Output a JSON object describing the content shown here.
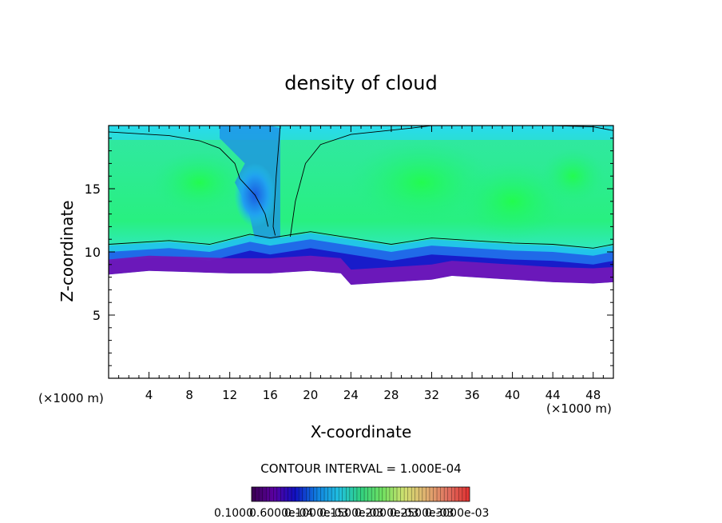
{
  "chart_data": {
    "type": "heatmap",
    "title": "density of cloud",
    "xlabel": "X-coordinate",
    "ylabel": "Z-coordinate",
    "x_unit": "(×1000 m)",
    "z_unit": "(×1000 m)",
    "xlim": [
      0,
      50
    ],
    "ylim": [
      0,
      20
    ],
    "x_ticks": [
      4,
      8,
      12,
      16,
      20,
      24,
      28,
      32,
      36,
      40,
      44,
      48
    ],
    "y_ticks": [
      5,
      10,
      15
    ],
    "contour_interval": "CONTOUR INTERVAL = 1.000E-04",
    "colorbar_labels": [
      "0.1000",
      "0.6000e-04",
      "0.1000e-03",
      "0.1500e-03",
      "0.2000e-03",
      "0.2500e-03",
      "0.3000e-03"
    ],
    "cloud_base": [
      [
        0,
        8.2
      ],
      [
        4,
        8.5
      ],
      [
        8,
        8.4
      ],
      [
        12,
        8.3
      ],
      [
        16,
        8.3
      ],
      [
        20,
        8.5
      ],
      [
        23,
        8.3
      ],
      [
        24,
        7.4
      ],
      [
        28,
        7.6
      ],
      [
        32,
        7.8
      ],
      [
        34,
        8.1
      ],
      [
        36,
        8.0
      ],
      [
        40,
        7.8
      ],
      [
        44,
        7.6
      ],
      [
        48,
        7.5
      ],
      [
        50,
        7.6
      ]
    ],
    "cloud_layer_top": [
      [
        0,
        10.5
      ],
      [
        6,
        10.8
      ],
      [
        10,
        10.5
      ],
      [
        14,
        11.3
      ],
      [
        16,
        11.0
      ],
      [
        20,
        11.5
      ],
      [
        24,
        11.0
      ],
      [
        28,
        10.5
      ],
      [
        32,
        11.0
      ],
      [
        36,
        10.8
      ],
      [
        40,
        10.6
      ],
      [
        44,
        10.5
      ],
      [
        48,
        10.2
      ],
      [
        50,
        10.5
      ]
    ],
    "plume_axis_x": [
      12,
      18
    ],
    "max_density_region_z": [
      8.0,
      10.5
    ]
  }
}
